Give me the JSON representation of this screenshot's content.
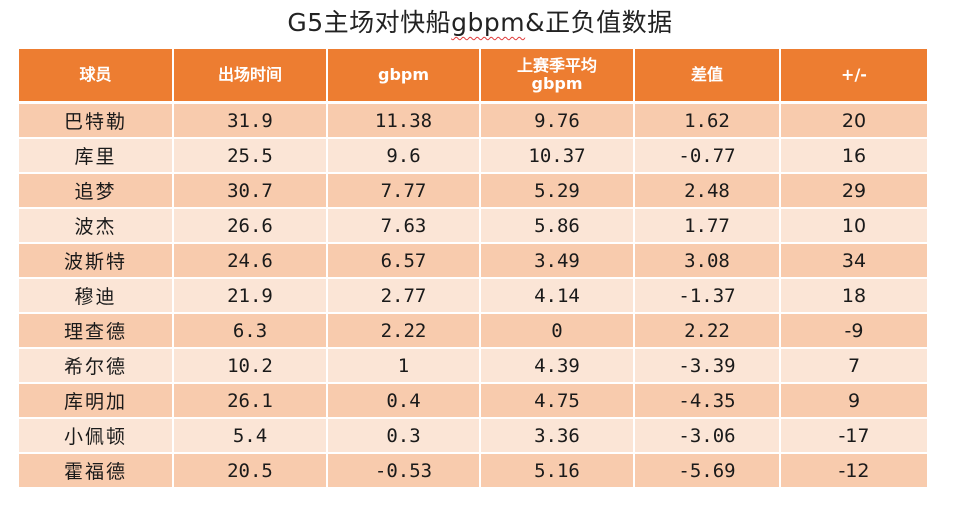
{
  "title": {
    "prefix": "G5主场对快船",
    "underlined": "gbpm",
    "suffix": "&正负值数据"
  },
  "table": {
    "headers": {
      "player": "球员",
      "minutes": "出场时间",
      "gbpm": "gbpm",
      "last_season_line1": "上赛季平均",
      "last_season_line2": "gbpm",
      "diff": "差值",
      "plus_minus": "+/-"
    },
    "rows": [
      {
        "player": "巴特勒",
        "minutes": "31.9",
        "gbpm": "11.38",
        "last_season": "9.76",
        "diff": "1.62",
        "plus_minus": "20"
      },
      {
        "player": "库里",
        "minutes": "25.5",
        "gbpm": "9.6",
        "last_season": "10.37",
        "diff": "-0.77",
        "plus_minus": "16"
      },
      {
        "player": "追梦",
        "minutes": "30.7",
        "gbpm": "7.77",
        "last_season": "5.29",
        "diff": "2.48",
        "plus_minus": "29"
      },
      {
        "player": "波杰",
        "minutes": "26.6",
        "gbpm": "7.63",
        "last_season": "5.86",
        "diff": "1.77",
        "plus_minus": "10"
      },
      {
        "player": "波斯特",
        "minutes": "24.6",
        "gbpm": "6.57",
        "last_season": "3.49",
        "diff": "3.08",
        "plus_minus": "34"
      },
      {
        "player": "穆迪",
        "minutes": "21.9",
        "gbpm": "2.77",
        "last_season": "4.14",
        "diff": "-1.37",
        "plus_minus": "18"
      },
      {
        "player": "理查德",
        "minutes": "6.3",
        "gbpm": "2.22",
        "last_season": "0",
        "diff": "2.22",
        "plus_minus": "-9"
      },
      {
        "player": "希尔德",
        "minutes": "10.2",
        "gbpm": "1",
        "last_season": "4.39",
        "diff": "-3.39",
        "plus_minus": "7"
      },
      {
        "player": "库明加",
        "minutes": "26.1",
        "gbpm": "0.4",
        "last_season": "4.75",
        "diff": "-4.35",
        "plus_minus": "9"
      },
      {
        "player": "小佩顿",
        "minutes": "5.4",
        "gbpm": "0.3",
        "last_season": "3.36",
        "diff": "-3.06",
        "plus_minus": "-17"
      },
      {
        "player": "霍福德",
        "minutes": "20.5",
        "gbpm": "-0.53",
        "last_season": "5.16",
        "diff": "-5.69",
        "plus_minus": "-12"
      }
    ]
  },
  "colors": {
    "header_bg": "#ed7d31",
    "row_odd": "#f8cbad",
    "row_even": "#fbe5d6"
  }
}
